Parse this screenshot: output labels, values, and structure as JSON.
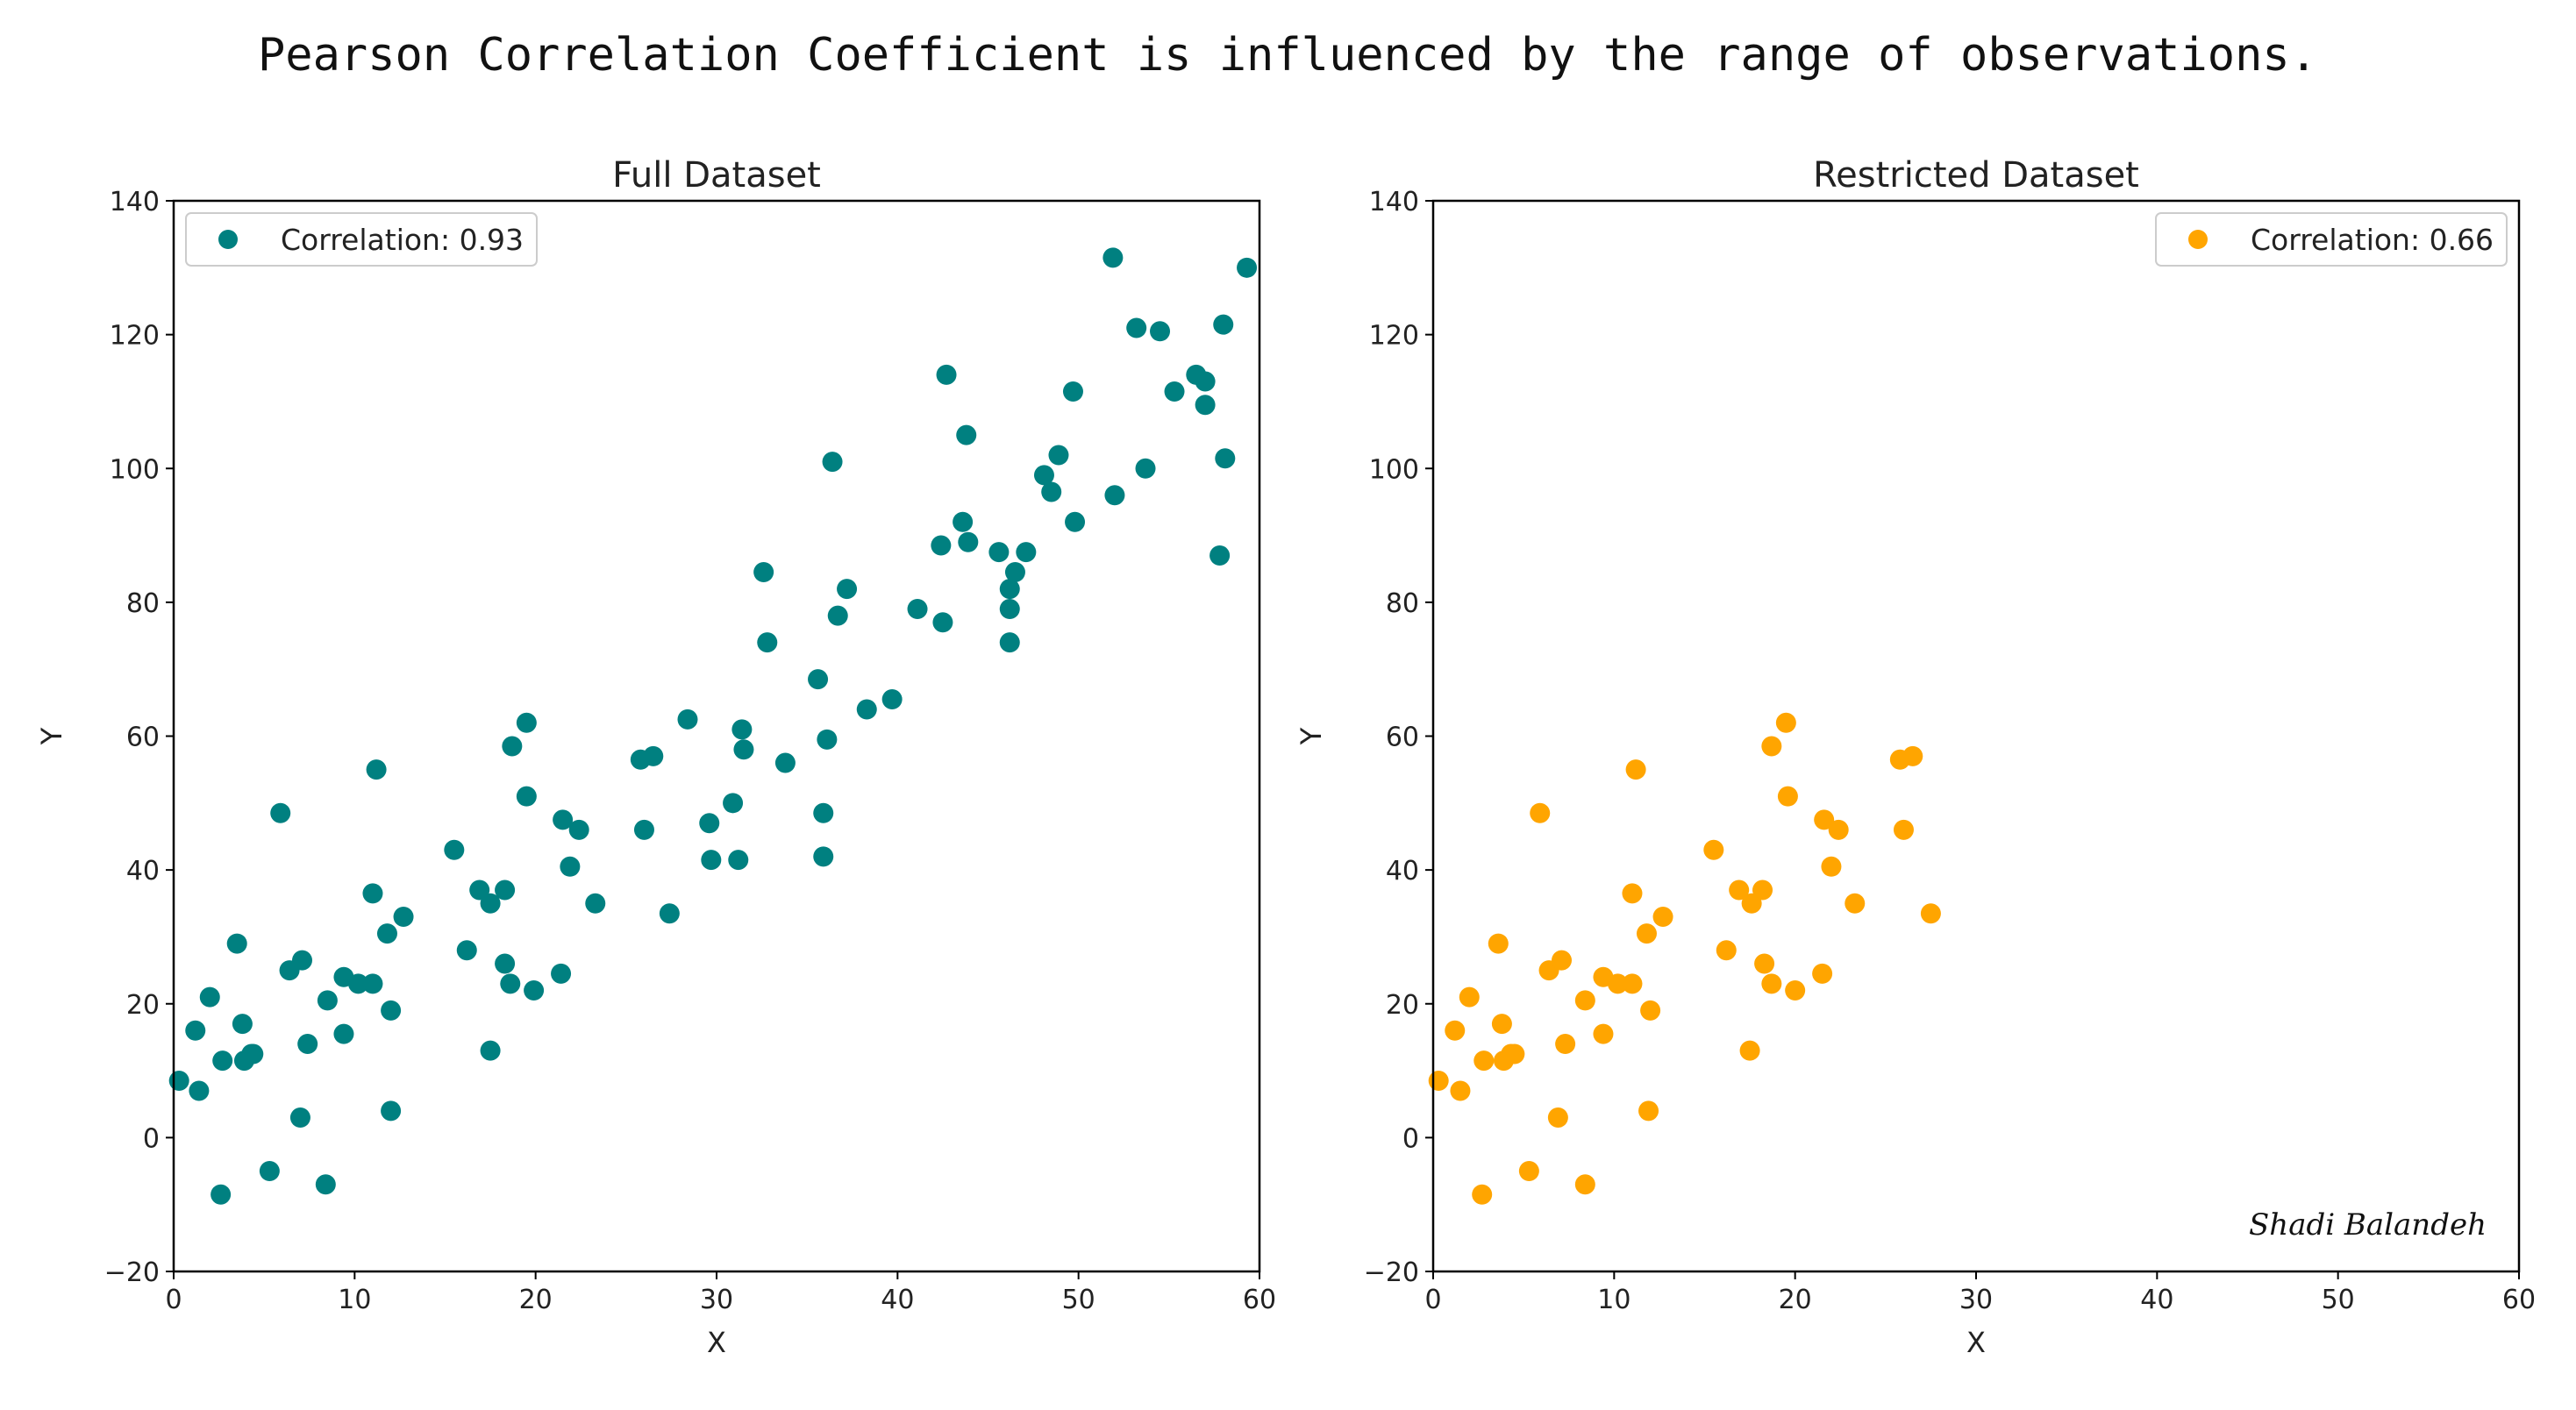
{
  "suptitle": "Pearson Correlation Coefficient is influenced by the range of observations.",
  "signature": "Shadi Balandeh",
  "chart_data": [
    {
      "type": "scatter",
      "title": "Full Dataset",
      "xlabel": "X",
      "ylabel": "Y",
      "xlim": [
        0,
        60
      ],
      "ylim": [
        -20,
        140
      ],
      "xticks": [
        0,
        10,
        20,
        30,
        40,
        50,
        60
      ],
      "yticks": [
        -20,
        0,
        20,
        40,
        60,
        80,
        100,
        120,
        140
      ],
      "grid": false,
      "legend_position": "top-left",
      "color": "#008080",
      "series": [
        {
          "name": "Correlation: 0.93",
          "points": [
            [
              0.3,
              8.5
            ],
            [
              1.2,
              16
            ],
            [
              1.4,
              7
            ],
            [
              2.0,
              21
            ],
            [
              2.6,
              -8.5
            ],
            [
              2.7,
              11.5
            ],
            [
              3.5,
              29
            ],
            [
              3.8,
              17
            ],
            [
              3.9,
              11.5
            ],
            [
              4.3,
              12.5
            ],
            [
              4.4,
              12.5
            ],
            [
              5.3,
              -5
            ],
            [
              5.9,
              48.5
            ],
            [
              6.4,
              25
            ],
            [
              7.0,
              3
            ],
            [
              7.1,
              26.5
            ],
            [
              7.4,
              14
            ],
            [
              8.4,
              -7
            ],
            [
              8.5,
              20.5
            ],
            [
              9.4,
              15.5
            ],
            [
              9.4,
              24
            ],
            [
              10.2,
              23
            ],
            [
              11.0,
              36.5
            ],
            [
              11.0,
              23
            ],
            [
              11.2,
              55
            ],
            [
              11.8,
              30.5
            ],
            [
              12.0,
              19
            ],
            [
              12.0,
              4
            ],
            [
              12.7,
              33
            ],
            [
              15.5,
              43
            ],
            [
              16.2,
              28
            ],
            [
              16.9,
              37
            ],
            [
              17.5,
              13
            ],
            [
              17.5,
              35
            ],
            [
              18.3,
              37
            ],
            [
              18.3,
              26
            ],
            [
              18.6,
              23
            ],
            [
              18.7,
              58.5
            ],
            [
              19.5,
              62
            ],
            [
              19.5,
              51
            ],
            [
              19.9,
              22
            ],
            [
              21.4,
              24.5
            ],
            [
              21.5,
              47.5
            ],
            [
              21.9,
              40.5
            ],
            [
              22.4,
              46
            ],
            [
              23.3,
              35
            ],
            [
              25.8,
              56.5
            ],
            [
              26.0,
              46
            ],
            [
              26.5,
              57
            ],
            [
              27.4,
              33.5
            ],
            [
              28.4,
              62.5
            ],
            [
              29.6,
              47
            ],
            [
              29.7,
              41.5
            ],
            [
              30.9,
              50
            ],
            [
              31.2,
              41.5
            ],
            [
              31.4,
              61
            ],
            [
              31.5,
              58
            ],
            [
              32.6,
              84.5
            ],
            [
              32.8,
              74
            ],
            [
              33.8,
              56
            ],
            [
              35.6,
              68.5
            ],
            [
              35.9,
              42
            ],
            [
              35.9,
              48.5
            ],
            [
              36.1,
              59.5
            ],
            [
              36.4,
              101
            ],
            [
              36.7,
              78
            ],
            [
              37.2,
              82
            ],
            [
              38.3,
              64
            ],
            [
              39.7,
              65.5
            ],
            [
              41.1,
              79
            ],
            [
              42.4,
              88.5
            ],
            [
              42.5,
              77
            ],
            [
              42.7,
              114
            ],
            [
              43.6,
              92
            ],
            [
              43.8,
              105
            ],
            [
              43.9,
              89
            ],
            [
              45.6,
              87.5
            ],
            [
              46.2,
              74
            ],
            [
              46.2,
              79
            ],
            [
              46.2,
              82
            ],
            [
              46.5,
              84.5
            ],
            [
              47.1,
              87.5
            ],
            [
              48.1,
              99
            ],
            [
              48.5,
              96.5
            ],
            [
              48.9,
              102
            ],
            [
              49.7,
              111.5
            ],
            [
              49.8,
              92
            ],
            [
              51.9,
              131.5
            ],
            [
              52.0,
              96
            ],
            [
              53.2,
              121
            ],
            [
              53.7,
              100
            ],
            [
              54.5,
              120.5
            ],
            [
              55.3,
              111.5
            ],
            [
              56.5,
              114
            ],
            [
              57.0,
              113
            ],
            [
              57.0,
              109.5
            ],
            [
              57.8,
              87
            ],
            [
              58.0,
              121.5
            ],
            [
              58.1,
              101.5
            ],
            [
              59.3,
              130
            ]
          ]
        }
      ]
    },
    {
      "type": "scatter",
      "title": "Restricted Dataset",
      "xlabel": "X",
      "ylabel": "Y",
      "xlim": [
        0,
        60
      ],
      "ylim": [
        -20,
        140
      ],
      "xticks": [
        0,
        10,
        20,
        30,
        40,
        50,
        60
      ],
      "yticks": [
        -20,
        0,
        20,
        40,
        60,
        80,
        100,
        120,
        140
      ],
      "grid": false,
      "legend_position": "top-right",
      "color": "#FFA500",
      "series": [
        {
          "name": "Correlation: 0.66",
          "points": [
            [
              0.3,
              8.5
            ],
            [
              1.2,
              16
            ],
            [
              1.5,
              7
            ],
            [
              2.0,
              21
            ],
            [
              2.7,
              -8.5
            ],
            [
              2.8,
              11.5
            ],
            [
              3.6,
              29
            ],
            [
              3.8,
              17
            ],
            [
              3.9,
              11.5
            ],
            [
              4.3,
              12.5
            ],
            [
              4.5,
              12.5
            ],
            [
              5.3,
              -5
            ],
            [
              5.9,
              48.5
            ],
            [
              6.4,
              25
            ],
            [
              6.9,
              3
            ],
            [
              7.1,
              26.5
            ],
            [
              7.3,
              14
            ],
            [
              8.4,
              -7
            ],
            [
              8.4,
              20.5
            ],
            [
              9.4,
              15.5
            ],
            [
              9.4,
              24
            ],
            [
              10.2,
              23
            ],
            [
              11.0,
              36.5
            ],
            [
              11.0,
              23
            ],
            [
              11.2,
              55
            ],
            [
              11.8,
              30.5
            ],
            [
              12.0,
              19
            ],
            [
              11.9,
              4
            ],
            [
              12.7,
              33
            ],
            [
              15.5,
              43
            ],
            [
              16.2,
              28
            ],
            [
              16.9,
              37
            ],
            [
              17.5,
              13
            ],
            [
              17.6,
              35
            ],
            [
              18.2,
              37
            ],
            [
              18.3,
              26
            ],
            [
              18.7,
              23
            ],
            [
              18.7,
              58.5
            ],
            [
              19.5,
              62
            ],
            [
              19.6,
              51
            ],
            [
              20.0,
              22
            ],
            [
              21.5,
              24.5
            ],
            [
              21.6,
              47.5
            ],
            [
              22.0,
              40.5
            ],
            [
              22.4,
              46
            ],
            [
              23.3,
              35
            ],
            [
              25.8,
              56.5
            ],
            [
              26.0,
              46
            ],
            [
              26.5,
              57
            ],
            [
              27.5,
              33.5
            ]
          ]
        }
      ]
    }
  ]
}
